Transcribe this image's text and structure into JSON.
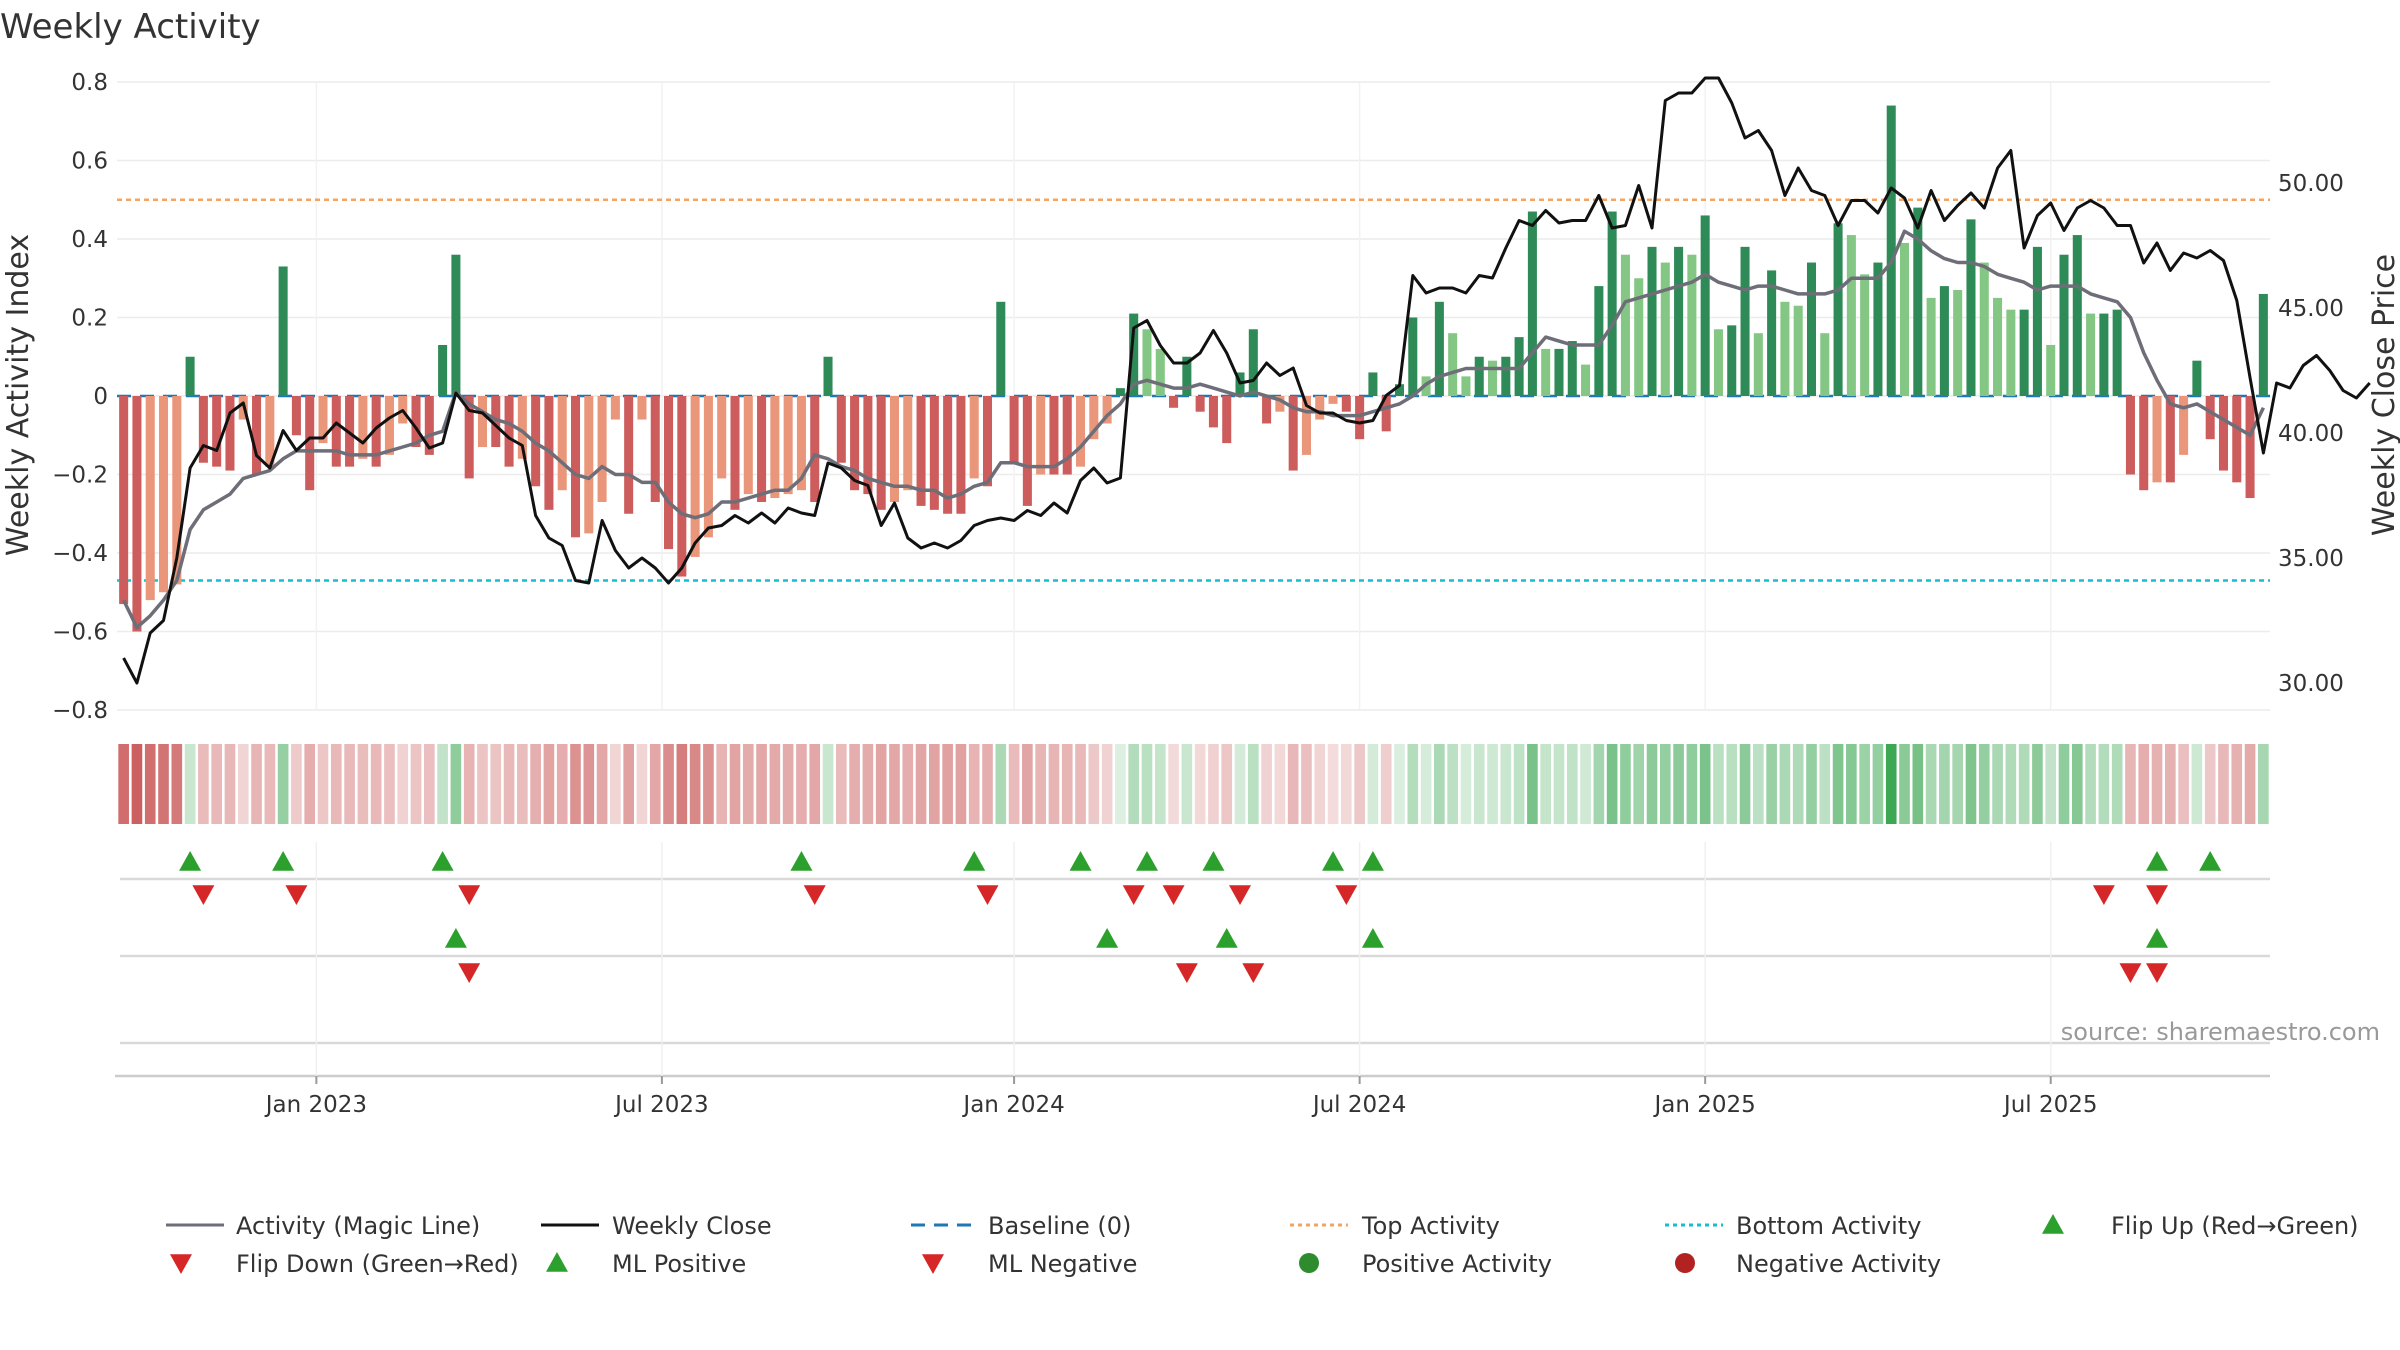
{
  "chart_data": {
    "type": "bar",
    "title": "Weekly Activity",
    "ylabel": "Weekly Activity Index",
    "ylabel_right": "Weekly Close Price",
    "ylim": [
      -0.8,
      0.8
    ],
    "ylim_right": [
      27.9,
      54.9
    ],
    "yticks": [
      {
        "value": 0.8,
        "label": "0.8"
      },
      {
        "value": 0.6,
        "label": "0.6"
      },
      {
        "value": 0.4,
        "label": "0.4"
      },
      {
        "value": 0.2,
        "label": "0.2"
      },
      {
        "value": 0,
        "label": "0"
      },
      {
        "value": -0.2,
        "label": "−0.2"
      },
      {
        "value": -0.4,
        "label": "−0.4"
      },
      {
        "value": -0.6,
        "label": "−0.6"
      },
      {
        "value": -0.8,
        "label": "−0.8"
      }
    ],
    "yticks_right": [
      {
        "value": 50,
        "label": "50.00"
      },
      {
        "value": 45,
        "label": "45.00"
      },
      {
        "value": 40,
        "label": "40.00"
      },
      {
        "value": 35,
        "label": "35.00"
      },
      {
        "value": 30,
        "label": "30.00"
      }
    ],
    "xticks": [
      {
        "index": 14.5,
        "label": "Jan 2023"
      },
      {
        "index": 40.5,
        "label": "Jul 2023"
      },
      {
        "index": 67,
        "label": "Jan 2024"
      },
      {
        "index": 93,
        "label": "Jul 2024"
      },
      {
        "index": 119,
        "label": "Jan 2025"
      },
      {
        "index": 145,
        "label": "Jul 2025"
      }
    ],
    "top_activity": 0.5,
    "bottom_activity": -0.47,
    "baseline": 0,
    "activity": [
      -0.53,
      -0.6,
      -0.52,
      -0.5,
      -0.48,
      0.1,
      -0.17,
      -0.18,
      -0.19,
      -0.06,
      -0.2,
      -0.18,
      0.33,
      -0.1,
      -0.24,
      -0.12,
      -0.18,
      -0.18,
      -0.16,
      -0.18,
      -0.15,
      -0.07,
      -0.13,
      -0.15,
      0.13,
      0.36,
      -0.21,
      -0.13,
      -0.13,
      -0.18,
      -0.16,
      -0.23,
      -0.29,
      -0.24,
      -0.36,
      -0.35,
      -0.27,
      -0.06,
      -0.3,
      -0.06,
      -0.27,
      -0.39,
      -0.46,
      -0.41,
      -0.36,
      -0.21,
      -0.29,
      -0.25,
      -0.27,
      -0.26,
      -0.25,
      -0.24,
      -0.27,
      0.1,
      -0.17,
      -0.24,
      -0.25,
      -0.29,
      -0.27,
      -0.24,
      -0.28,
      -0.29,
      -0.3,
      -0.3,
      -0.21,
      -0.23,
      0.24,
      -0.17,
      -0.28,
      -0.2,
      -0.2,
      -0.2,
      -0.18,
      -0.11,
      -0.07,
      0.02,
      0.21,
      0.17,
      0.12,
      -0.03,
      0.1,
      -0.04,
      -0.08,
      -0.12,
      0.06,
      0.17,
      -0.07,
      -0.04,
      -0.19,
      -0.15,
      -0.06,
      -0.02,
      -0.04,
      -0.11,
      0.06,
      -0.09,
      0.03,
      0.2,
      0.05,
      0.24,
      0.16,
      0.05,
      0.1,
      0.09,
      0.1,
      0.15,
      0.47,
      0.12,
      0.12,
      0.14,
      0.08,
      0.28,
      0.47,
      0.36,
      0.3,
      0.38,
      0.34,
      0.38,
      0.36,
      0.46,
      0.17,
      0.18,
      0.38,
      0.16,
      0.32,
      0.24,
      0.23,
      0.34,
      0.16,
      0.44,
      0.41,
      0.31,
      0.34,
      0.74,
      0.39,
      0.48,
      0.25,
      0.28,
      0.27,
      0.45,
      0.34,
      0.25,
      0.22,
      0.22,
      0.38,
      0.13,
      0.36,
      0.41,
      0.21,
      0.21,
      0.22,
      -0.2,
      -0.24,
      -0.22,
      -0.22,
      -0.15,
      0.09,
      -0.11,
      -0.19,
      -0.22,
      -0.26,
      0.26
    ],
    "magic_line": [
      -0.52,
      -0.59,
      -0.56,
      -0.52,
      -0.47,
      -0.34,
      -0.29,
      -0.27,
      -0.25,
      -0.21,
      -0.2,
      -0.19,
      -0.16,
      -0.14,
      -0.14,
      -0.14,
      -0.14,
      -0.15,
      -0.15,
      -0.15,
      -0.14,
      -0.13,
      -0.12,
      -0.1,
      -0.09,
      0.01,
      -0.02,
      -0.04,
      -0.06,
      -0.07,
      -0.09,
      -0.12,
      -0.14,
      -0.17,
      -0.2,
      -0.21,
      -0.18,
      -0.2,
      -0.2,
      -0.22,
      -0.22,
      -0.27,
      -0.3,
      -0.31,
      -0.3,
      -0.27,
      -0.27,
      -0.26,
      -0.25,
      -0.24,
      -0.24,
      -0.21,
      -0.15,
      -0.16,
      -0.18,
      -0.19,
      -0.21,
      -0.22,
      -0.23,
      -0.23,
      -0.24,
      -0.24,
      -0.26,
      -0.25,
      -0.23,
      -0.22,
      -0.17,
      -0.17,
      -0.18,
      -0.18,
      -0.18,
      -0.16,
      -0.13,
      -0.09,
      -0.05,
      -0.02,
      0.03,
      0.04,
      0.03,
      0.02,
      0.02,
      0.03,
      0.02,
      0.01,
      0.0,
      0.01,
      0.0,
      -0.01,
      -0.03,
      -0.04,
      -0.04,
      -0.05,
      -0.05,
      -0.05,
      -0.04,
      -0.03,
      -0.02,
      0.0,
      0.03,
      0.05,
      0.06,
      0.07,
      0.07,
      0.07,
      0.07,
      0.07,
      0.11,
      0.15,
      0.14,
      0.13,
      0.13,
      0.13,
      0.18,
      0.24,
      0.25,
      0.26,
      0.27,
      0.28,
      0.29,
      0.31,
      0.29,
      0.28,
      0.27,
      0.28,
      0.28,
      0.27,
      0.26,
      0.26,
      0.26,
      0.27,
      0.3,
      0.3,
      0.3,
      0.34,
      0.42,
      0.4,
      0.37,
      0.35,
      0.34,
      0.34,
      0.33,
      0.31,
      0.3,
      0.29,
      0.27,
      0.28,
      0.28,
      0.28,
      0.26,
      0.25,
      0.24,
      0.2,
      0.11,
      0.04,
      -0.02,
      -0.03,
      -0.02,
      -0.04,
      -0.06,
      -0.08,
      -0.1,
      -0.03
    ],
    "weekly_close": [
      31.0,
      30.0,
      32.0,
      32.5,
      35.0,
      38.6,
      39.5,
      39.3,
      40.8,
      41.2,
      39.1,
      38.6,
      40.1,
      39.3,
      39.8,
      39.8,
      40.4,
      40.0,
      39.6,
      40.2,
      40.6,
      40.9,
      40.2,
      39.4,
      39.6,
      41.6,
      40.9,
      40.8,
      40.3,
      39.8,
      39.5,
      36.7,
      35.8,
      35.5,
      34.1,
      34.0,
      36.5,
      35.3,
      34.6,
      35.0,
      34.6,
      34.0,
      34.6,
      35.6,
      36.2,
      36.3,
      36.7,
      36.4,
      36.8,
      36.4,
      37.0,
      36.8,
      36.7,
      38.8,
      38.6,
      38.1,
      37.9,
      36.3,
      37.2,
      35.8,
      35.4,
      35.6,
      35.4,
      35.7,
      36.3,
      36.5,
      36.6,
      36.5,
      36.9,
      36.7,
      37.2,
      36.8,
      38.1,
      38.6,
      38.0,
      38.2,
      44.2,
      44.5,
      43.5,
      42.8,
      42.8,
      43.2,
      44.1,
      43.2,
      42.0,
      42.1,
      42.8,
      42.3,
      42.6,
      41.1,
      40.8,
      40.8,
      40.5,
      40.4,
      40.5,
      41.5,
      41.9,
      46.3,
      45.6,
      45.8,
      45.8,
      45.6,
      46.3,
      46.2,
      47.4,
      48.5,
      48.3,
      48.9,
      48.4,
      48.5,
      48.5,
      49.5,
      48.2,
      48.3,
      49.9,
      48.2,
      53.3,
      53.6,
      53.6,
      54.2,
      54.2,
      53.2,
      51.8,
      52.1,
      51.3,
      49.5,
      50.6,
      49.7,
      49.5,
      48.3,
      49.3,
      49.3,
      48.8,
      49.8,
      49.4,
      48.2,
      49.7,
      48.5,
      49.1,
      49.6,
      49.0,
      50.6,
      51.3,
      47.4,
      48.7,
      49.2,
      48.1,
      49.0,
      49.3,
      49.0,
      48.3,
      48.3,
      46.8,
      47.6,
      46.5,
      47.2,
      47.0,
      47.3,
      46.9,
      45.3,
      42.2,
      39.2,
      42.0,
      41.8,
      42.7,
      43.1,
      42.5,
      41.7,
      41.4,
      42.0
    ],
    "heat_values": [
      -0.53,
      -0.6,
      -0.52,
      -0.5,
      -0.48,
      0.1,
      -0.17,
      -0.18,
      -0.19,
      -0.06,
      -0.2,
      -0.18,
      0.33,
      -0.1,
      -0.24,
      -0.12,
      -0.18,
      -0.18,
      -0.16,
      -0.18,
      -0.15,
      -0.07,
      -0.13,
      -0.15,
      0.13,
      0.36,
      -0.21,
      -0.13,
      -0.13,
      -0.18,
      -0.16,
      -0.23,
      -0.29,
      -0.24,
      -0.36,
      -0.35,
      -0.27,
      -0.06,
      -0.3,
      -0.06,
      -0.27,
      -0.39,
      -0.46,
      -0.41,
      -0.36,
      -0.21,
      -0.29,
      -0.25,
      -0.27,
      -0.26,
      -0.25,
      -0.24,
      -0.27,
      0.1,
      -0.17,
      -0.24,
      -0.25,
      -0.29,
      -0.27,
      -0.24,
      -0.28,
      -0.29,
      -0.3,
      -0.3,
      -0.21,
      -0.23,
      0.24,
      -0.17,
      -0.28,
      -0.2,
      -0.2,
      -0.2,
      -0.18,
      -0.11,
      -0.07,
      0.02,
      0.21,
      0.17,
      0.12,
      -0.03,
      0.1,
      -0.04,
      -0.08,
      -0.12,
      0.06,
      0.17,
      -0.07,
      -0.04,
      -0.19,
      -0.15,
      -0.06,
      -0.02,
      -0.04,
      -0.11,
      0.06,
      -0.09,
      0.03,
      0.2,
      0.05,
      0.24,
      0.16,
      0.05,
      0.1,
      0.09,
      0.1,
      0.15,
      0.47,
      0.12,
      0.12,
      0.14,
      0.08,
      0.28,
      0.47,
      0.36,
      0.3,
      0.38,
      0.34,
      0.38,
      0.36,
      0.46,
      0.17,
      0.18,
      0.38,
      0.16,
      0.32,
      0.24,
      0.23,
      0.34,
      0.16,
      0.44,
      0.41,
      0.31,
      0.34,
      0.74,
      0.39,
      0.48,
      0.25,
      0.28,
      0.27,
      0.45,
      0.34,
      0.25,
      0.22,
      0.22,
      0.38,
      0.13,
      0.36,
      0.41,
      0.21,
      0.21,
      0.22,
      -0.2,
      -0.24,
      -0.22,
      -0.22,
      -0.15,
      0.09,
      -0.11,
      -0.19,
      -0.22,
      -0.26,
      0.26
    ],
    "flip_up": [
      5,
      12,
      24,
      51,
      64,
      72,
      77,
      82,
      91,
      94,
      153,
      157
    ],
    "flip_down": [
      6,
      13,
      26,
      52,
      65,
      76,
      79,
      84,
      92,
      149,
      153
    ],
    "ml_up": [
      25,
      74,
      83,
      94,
      153
    ],
    "ml_down": [
      26,
      80,
      85,
      151,
      153
    ],
    "colors": {
      "pos_dark": "#2e8b57",
      "pos_light": "#84c784",
      "neg_dark": "#cd5c5c",
      "neg_light": "#e9967a",
      "magic_line": "#6e6e78",
      "close": "#111111",
      "baseline": "#1f77b4",
      "top": "#f4a460",
      "bottom": "#17becf",
      "up_marker": "#2ca02c",
      "down_marker": "#d62728",
      "positive_dot": "#2e8b2e",
      "negative_dot": "#b22222"
    },
    "legend": [
      {
        "label": "Activity (Magic Line)",
        "kind": "line",
        "color": "#6e6e78"
      },
      {
        "label": "Weekly Close",
        "kind": "line",
        "color": "#111111"
      },
      {
        "label": "Baseline (0)",
        "kind": "dash",
        "color": "#1f77b4"
      },
      {
        "label": "Top Activity",
        "kind": "dot",
        "color": "#f4a460"
      },
      {
        "label": "Bottom Activity",
        "kind": "dot",
        "color": "#17becf"
      },
      {
        "label": "Flip Up (Red→Green)",
        "kind": "tri-up",
        "color": "#2ca02c"
      },
      {
        "label": "Flip Down (Green→Red)",
        "kind": "tri-down",
        "color": "#d62728"
      },
      {
        "label": "ML Positive",
        "kind": "tri-up",
        "color": "#2ca02c"
      },
      {
        "label": "ML Negative",
        "kind": "tri-down",
        "color": "#d62728"
      },
      {
        "label": "Positive Activity",
        "kind": "circle",
        "color": "#2e8b2e"
      },
      {
        "label": "Negative Activity",
        "kind": "circle",
        "color": "#b22222"
      }
    ],
    "source": "source: sharemaestro.com"
  }
}
